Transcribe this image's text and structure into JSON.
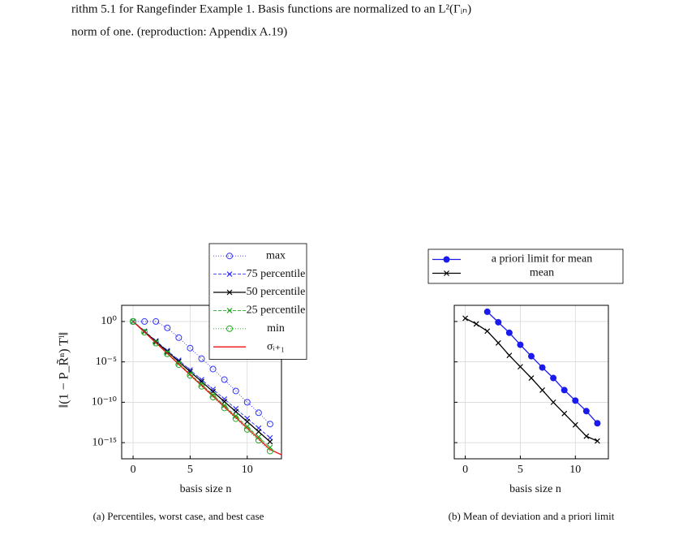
{
  "text_lines": [
    "rithm 5.1 for Rangefinder Example 1. Basis functions are normalized to an L²(Γᵢₙ)",
    "norm of one. (reproduction: Appendix A.19)"
  ],
  "chart_data": [
    {
      "type": "line",
      "caption": "(a) Percentiles, worst case, and best case",
      "xlabel": "basis size n",
      "ylabel": "‖(1 − P_R̃ⁿ) Tˡ‖",
      "log_y": true,
      "grid": true,
      "legend_position": "upper right",
      "show_ytick_labels": true,
      "xlim": [
        -1,
        13
      ],
      "ylim": [
        1e-17,
        100
      ],
      "xticks": [
        0,
        5,
        10
      ],
      "yticks": [
        {
          "value": 1,
          "label": "10⁰"
        },
        {
          "value": 1e-05,
          "label": "10⁻⁵"
        },
        {
          "value": 1e-10,
          "label": "10⁻¹⁰"
        },
        {
          "value": 1e-15,
          "label": "10⁻¹⁵"
        }
      ],
      "series": [
        {
          "name": "max",
          "color": "#3333ff",
          "dash": "dotted",
          "marker": "circle",
          "x": [
            0,
            1,
            2,
            3,
            4,
            5,
            6,
            7,
            8,
            9,
            10,
            11,
            12
          ],
          "values": [
            1,
            1,
            1,
            0.16,
            0.01,
            0.0005,
            2.5e-05,
            1.3e-06,
            6.3e-08,
            2.5e-09,
            1e-10,
            5e-12,
            2e-13
          ]
        },
        {
          "name": "75 percentile",
          "color": "#3333ff",
          "dash": "dashed",
          "marker": "cross",
          "x": [
            0,
            1,
            2,
            3,
            4,
            5,
            6,
            7,
            8,
            9,
            10,
            11,
            12
          ],
          "values": [
            1,
            0.063,
            0.004,
            0.00025,
            1.6e-05,
            1e-06,
            6.3e-08,
            4e-09,
            2.5e-10,
            1.6e-11,
            1e-12,
            6.3e-14,
            4e-15
          ]
        },
        {
          "name": "50 percentile",
          "color": "#000000",
          "dash": "solid",
          "marker": "cross",
          "x": [
            0,
            1,
            2,
            3,
            4,
            5,
            6,
            7,
            8,
            9,
            10,
            11,
            12
          ],
          "values": [
            1,
            0.058,
            0.0033,
            0.00019,
            1.1e-05,
            6.3e-07,
            3.6e-08,
            2.1e-09,
            1.2e-10,
            6.9e-12,
            4e-13,
            2.3e-14,
            1.3e-15
          ]
        },
        {
          "name": "25 percentile",
          "color": "#22aa22",
          "dash": "dashed",
          "marker": "cross",
          "x": [
            0,
            1,
            2,
            3,
            4,
            5,
            6,
            7,
            8,
            9,
            10,
            11,
            12
          ],
          "values": [
            1,
            0.05,
            0.0025,
            0.00013,
            6.3e-06,
            3.2e-07,
            1.6e-08,
            7.9e-10,
            4e-11,
            2e-12,
            1e-13,
            5e-15,
            2.5e-16
          ]
        },
        {
          "name": "min",
          "color": "#22aa22",
          "dash": "dotted",
          "marker": "circle",
          "x": [
            0,
            1,
            2,
            3,
            4,
            5,
            6,
            7,
            8,
            9,
            10,
            11,
            12
          ],
          "values": [
            1,
            0.046,
            0.0021,
            9.8e-05,
            4.5e-06,
            2.1e-07,
            9.5e-09,
            4.4e-10,
            2e-11,
            9.3e-13,
            4.3e-14,
            2e-15,
            9.1e-17
          ]
        },
        {
          "name": "σᵢ₊₁",
          "color": "#ee1111",
          "dash": "solid",
          "marker": "none",
          "x": [
            0,
            1,
            2,
            3,
            4,
            5,
            6,
            7,
            8,
            9,
            10,
            11,
            12,
            13
          ],
          "values": [
            1,
            0.048,
            0.0023,
            0.00011,
            5.2e-06,
            2.5e-07,
            1.2e-08,
            5.8e-10,
            2.8e-11,
            1.3e-12,
            6.3e-14,
            3e-15,
            1.4e-16,
            3.2e-17
          ]
        }
      ]
    },
    {
      "type": "line",
      "caption": "(b) Mean of deviation and a priori limit",
      "xlabel": "basis size n",
      "log_y": true,
      "grid": true,
      "legend_position": "above",
      "show_ytick_labels": false,
      "xlim": [
        -1,
        13
      ],
      "ylim": [
        1e-17,
        100
      ],
      "xticks": [
        0,
        5,
        10
      ],
      "yticks": [
        1,
        1e-05,
        1e-10,
        1e-15
      ],
      "series": [
        {
          "name": "a priori limit for mean",
          "color": "#1a1aee",
          "dash": "solid",
          "marker": "filled-circle",
          "x": [
            2,
            3,
            4,
            5,
            6,
            7,
            8,
            9,
            10,
            11,
            12
          ],
          "values": [
            16,
            0.8,
            0.04,
            0.0013,
            5e-05,
            2e-06,
            1e-07,
            3.2e-09,
            1.6e-10,
            8e-12,
            2.5e-13
          ]
        },
        {
          "name": "mean",
          "color": "#000000",
          "dash": "solid",
          "marker": "cross",
          "x": [
            0,
            1,
            2,
            3,
            4,
            5,
            6,
            7,
            8,
            9,
            10,
            11,
            12
          ],
          "values": [
            2.5,
            0.5,
            0.063,
            0.0022,
            6.3e-05,
            2.5e-06,
            1e-07,
            3.2e-09,
            1e-10,
            4e-12,
            1.6e-13,
            6.3e-15,
            1.6e-15
          ]
        }
      ]
    }
  ]
}
